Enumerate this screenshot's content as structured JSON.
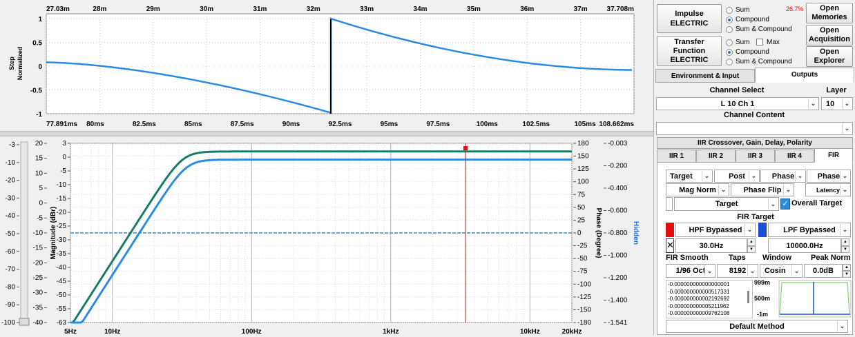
{
  "step_plot": {
    "ylabel": "Step\nNormalized",
    "ylabel_line1": "Step",
    "ylabel_line2": "Normalized",
    "top_ticks": [
      "27.03m",
      "28m",
      "29m",
      "30m",
      "31m",
      "32m",
      "33m",
      "34m",
      "35m",
      "36m",
      "37m",
      "37.708m"
    ],
    "bottom_ticks": [
      "77.891ms",
      "80ms",
      "82.5ms",
      "85ms",
      "87.5ms",
      "90ms",
      "92.5ms",
      "95ms",
      "97.5ms",
      "100ms",
      "102.5ms",
      "105ms",
      "108.662ms"
    ],
    "y_ticks": [
      "1",
      "0.5",
      "0",
      "-0.5",
      "-1"
    ]
  },
  "freq_plot": {
    "far_left_ticks": [
      "-3",
      "-10",
      "-20",
      "-30",
      "-40",
      "-50",
      "-60",
      "-70",
      "-80",
      "-90",
      "-100"
    ],
    "left2_ticks": [
      "20",
      "15",
      "10",
      "5",
      "0",
      "-5",
      "-10",
      "-15",
      "-20",
      "-25",
      "-30",
      "-35",
      "-40"
    ],
    "left3_ticks": [
      "3",
      "0",
      "-5",
      "-10",
      "-15",
      "-20",
      "-25",
      "-30",
      "-35",
      "-40",
      "-45",
      "-50",
      "-55",
      "-63"
    ],
    "ylabel": "Magnitude (dBr)",
    "phase_ticks": [
      "180",
      "150",
      "125",
      "100",
      "75",
      "50",
      "25",
      "0",
      "-25",
      "-50",
      "-75",
      "-100",
      "-125",
      "-150",
      "-180"
    ],
    "phase_label": "Phase (Degree)",
    "far_right_ticks": [
      "-0.003",
      "-0.200",
      "-0.400",
      "-0.600",
      "-0.800",
      "-1.000",
      "-1.200",
      "-1.400",
      "-1.541"
    ],
    "hidden_label": "Hidden",
    "x_ticks": [
      "5Hz",
      "10Hz",
      "100Hz",
      "1kHz",
      "10kHz",
      "20kHz"
    ]
  },
  "panel": {
    "impulse_btn": "Impulse\nELECTRIC",
    "impulse_l1": "Impulse",
    "impulse_l2": "ELECTRIC",
    "transfer_l1": "Transfer",
    "transfer_l2": "Function",
    "transfer_l3": "ELECTRIC",
    "radio_sum": "Sum",
    "radio_compound": "Compound",
    "radio_sum_compound": "Sum & Compound",
    "percent": "26.7%",
    "max_label": "Max",
    "open_memories_l1": "Open",
    "open_memories_l2": "Memories",
    "open_acq_l1": "Open",
    "open_acq_l2": "Acquisition",
    "open_exp_l1": "Open",
    "open_exp_l2": "Explorer",
    "tab_env": "Environment & Input",
    "tab_outputs": "Outputs",
    "channel_select_label": "Channel Select",
    "layer_label": "Layer",
    "channel_value": "L 10 Ch 1",
    "layer_value": "10",
    "channel_content_label": "Channel Content",
    "channel_content_value": "",
    "iir_header": "IIR Crossover, Gain, Delay, Polarity",
    "tabs": [
      "IIR 1",
      "IIR 2",
      "IIR 3",
      "IIR 4",
      "FIR"
    ],
    "target": "Target",
    "post": "Post",
    "phase1": "Phase",
    "phase2": "Phase",
    "mag_norm": "Mag Norm",
    "phase_flip": "Phase Flip",
    "latency": "Latency",
    "target2": "Target",
    "overall_target": "Overall Target",
    "fir_target": "FIR Target",
    "hpf": "HPF Bypassed",
    "lpf": "LPF Bypassed",
    "hpf_freq": "30.0Hz",
    "lpf_freq": "10000.0Hz",
    "fir_smooth_label": "FIR Smooth",
    "taps_label": "Taps",
    "window_label": "Window",
    "peak_norm_label": "Peak Norm",
    "smooth_value": "1/96 Oct",
    "taps_value": "8192",
    "window_value": "Cosin",
    "peak_value": "0.0dB",
    "coeffs": [
      "-0.000000000000000001",
      "-0.000000000000517331",
      "-0.000000000002192692",
      "-0.000000000005211962",
      "-0.000000000009762108"
    ],
    "mini_ticks": [
      "999m",
      "500m",
      "-1m"
    ],
    "method": "Default Method",
    "colors": {
      "red": "#e01010",
      "blue": "#1a4fd8",
      "accent": "#2a8be0"
    }
  }
}
